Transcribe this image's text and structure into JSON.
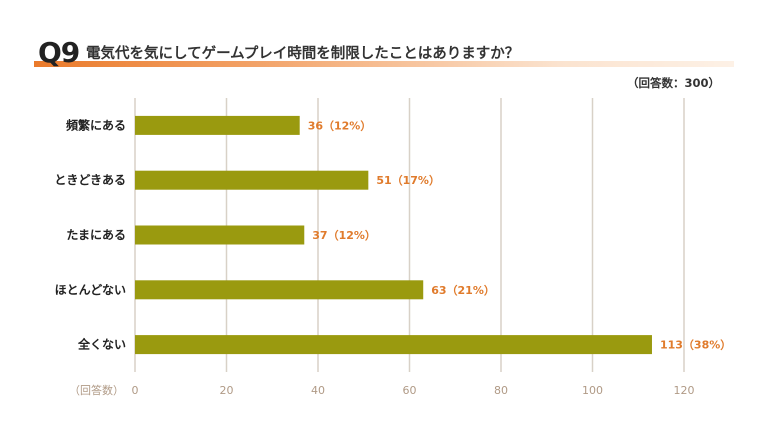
{
  "header": {
    "number": "Q9",
    "question": "電気代を気にしてゲームプレイ時間を制限したことはありますか？",
    "respondents": "（回答数：300）"
  },
  "axis_unit_label": "（回答数）",
  "colors": {
    "bar": "#9a9a0f",
    "value_label": "#e07b2c",
    "grid": "#d8d1c7",
    "title_band": "#ea7a2a"
  },
  "chart_data": {
    "type": "bar",
    "orientation": "horizontal",
    "categories": [
      "頻繁にある",
      "ときどきある",
      "たまにある",
      "ほとんどない",
      "全くない"
    ],
    "values": [
      36,
      51,
      37,
      63,
      113
    ],
    "value_labels": [
      "36（12%）",
      "51（17%）",
      "37（12%）",
      "63（21%）",
      "113（38%）"
    ],
    "xlim": [
      0,
      120
    ],
    "xticks": [
      0,
      20,
      40,
      60,
      80,
      100,
      120
    ],
    "grid": true
  }
}
